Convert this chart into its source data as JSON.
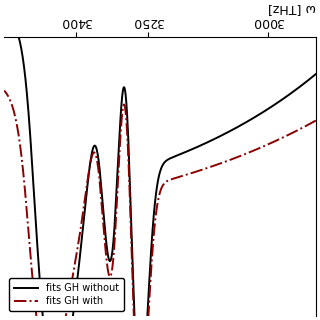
{
  "xlabel": "ω [THz]",
  "legend_without": "fits GH without",
  "legend_with": "fits GH with",
  "color_without": "#000000",
  "color_with": "#8b0000",
  "bg_color": "#ffffff",
  "xmin": 2900,
  "xmax": 3550,
  "xticks": [
    3000,
    3250,
    3400
  ],
  "figsize": [
    3.2,
    3.2
  ],
  "dpi": 100
}
